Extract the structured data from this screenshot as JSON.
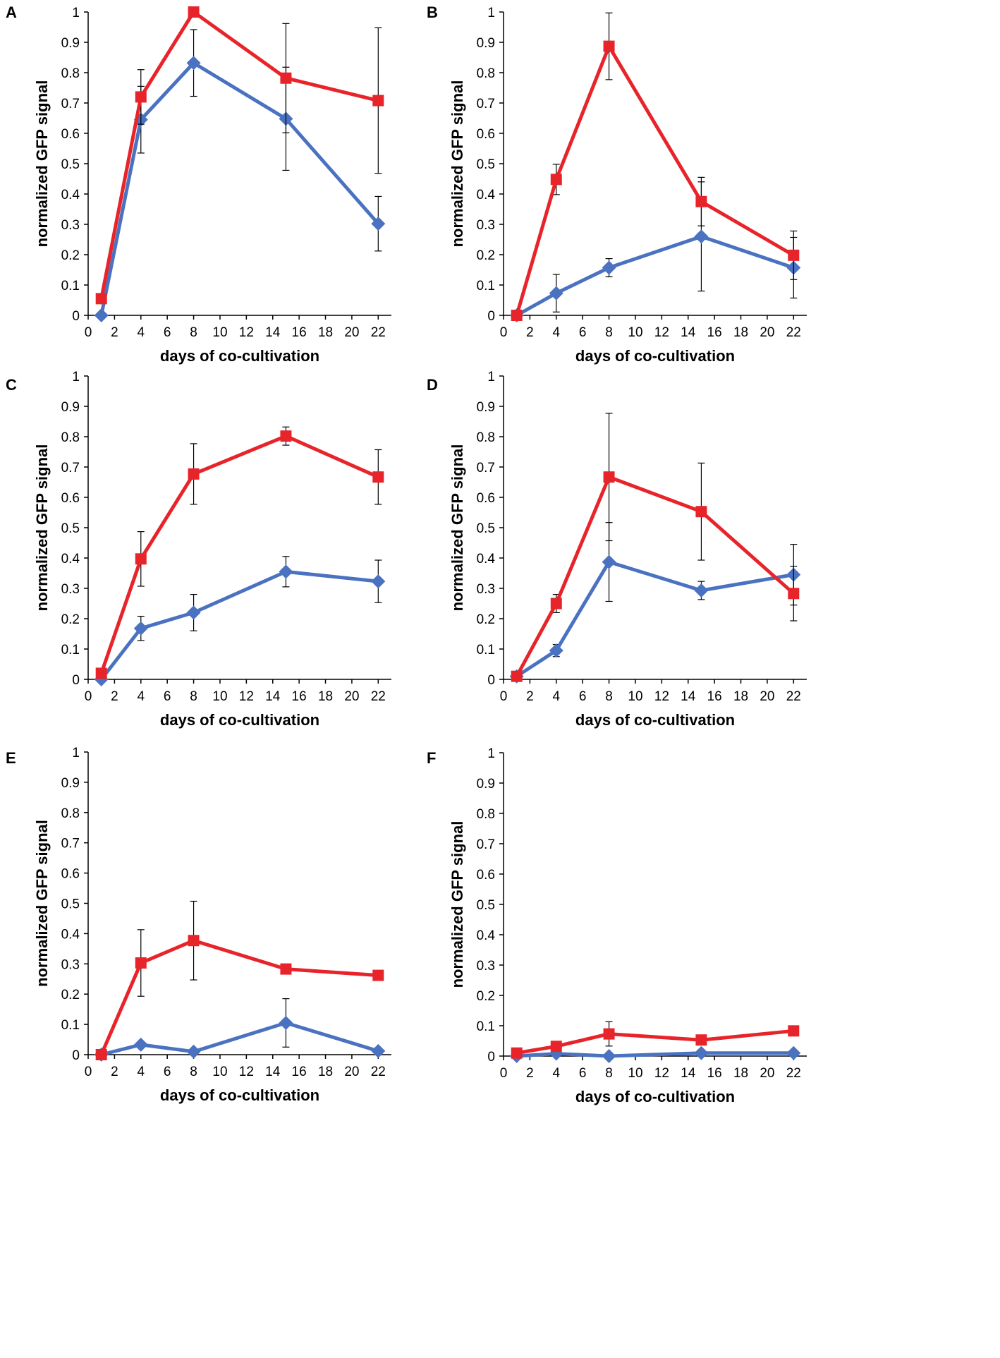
{
  "series_styles": [
    {
      "name": "blue",
      "color": "#4a72c0",
      "marker": "diamond"
    },
    {
      "name": "red",
      "color": "#e8242b",
      "marker": "square"
    }
  ],
  "chart_data": [
    {
      "type": "line",
      "panel": "A",
      "xlabel": "days of co-cultivation",
      "ylabel": "normalized GFP signal",
      "xlim": [
        0,
        23
      ],
      "ylim": [
        0,
        1
      ],
      "xticks": [
        "0",
        "2",
        "4",
        "6",
        "8",
        "10",
        "12",
        "14",
        "16",
        "18",
        "20",
        "22"
      ],
      "yticks": [
        "0",
        "0.1",
        "0.2",
        "0.3",
        "0.4",
        "0.5",
        "0.6",
        "0.7",
        "0.8",
        "0.9",
        "1"
      ],
      "x": [
        1,
        4,
        8,
        15,
        22
      ],
      "series": [
        {
          "name": "blue",
          "values": [
            0.0,
            0.645,
            0.832,
            0.648,
            0.302
          ],
          "errors": [
            0.0,
            0.11,
            0.11,
            0.17,
            0.09
          ]
        },
        {
          "name": "red",
          "values": [
            0.055,
            0.72,
            1.0,
            0.782,
            0.708
          ],
          "errors": [
            0.0,
            0.09,
            0.0,
            0.18,
            0.24
          ]
        }
      ]
    },
    {
      "type": "line",
      "panel": "B",
      "xlabel": "days of co-cultivation",
      "ylabel": "normalized GFP signal",
      "xlim": [
        0,
        23
      ],
      "ylim": [
        0,
        1
      ],
      "xticks": [
        "0",
        "2",
        "4",
        "6",
        "8",
        "10",
        "12",
        "14",
        "16",
        "18",
        "20",
        "22"
      ],
      "yticks": [
        "0",
        "0.1",
        "0.2",
        "0.3",
        "0.4",
        "0.5",
        "0.6",
        "0.7",
        "0.8",
        "0.9",
        "1"
      ],
      "x": [
        1,
        4,
        8,
        15,
        22
      ],
      "series": [
        {
          "name": "blue",
          "values": [
            0.0,
            0.073,
            0.157,
            0.26,
            0.157
          ],
          "errors": [
            0.0,
            0.062,
            0.03,
            0.18,
            0.1
          ]
        },
        {
          "name": "red",
          "values": [
            0.0,
            0.448,
            0.887,
            0.375,
            0.198
          ],
          "errors": [
            0.0,
            0.05,
            0.11,
            0.08,
            0.08
          ]
        }
      ]
    },
    {
      "type": "line",
      "panel": "C",
      "xlabel": "days of co-cultivation",
      "ylabel": "normalized GFP signal",
      "xlim": [
        0,
        23
      ],
      "ylim": [
        0,
        1
      ],
      "xticks": [
        "0",
        "2",
        "4",
        "6",
        "8",
        "10",
        "12",
        "14",
        "16",
        "18",
        "20",
        "22"
      ],
      "yticks": [
        "0",
        "0.1",
        "0.2",
        "0.3",
        "0.4",
        "0.5",
        "0.6",
        "0.7",
        "0.8",
        "0.9",
        "1"
      ],
      "x": [
        1,
        4,
        8,
        15,
        22
      ],
      "series": [
        {
          "name": "blue",
          "values": [
            0.0,
            0.168,
            0.22,
            0.355,
            0.323
          ],
          "errors": [
            0.0,
            0.04,
            0.06,
            0.05,
            0.07
          ]
        },
        {
          "name": "red",
          "values": [
            0.02,
            0.397,
            0.677,
            0.802,
            0.667
          ],
          "errors": [
            0.0,
            0.09,
            0.1,
            0.03,
            0.09
          ]
        }
      ]
    },
    {
      "type": "line",
      "panel": "D",
      "xlabel": "days of co-cultivation",
      "ylabel": "normalized GFP signal",
      "xlim": [
        0,
        23
      ],
      "ylim": [
        0,
        1
      ],
      "xticks": [
        "0",
        "2",
        "4",
        "6",
        "8",
        "10",
        "12",
        "14",
        "16",
        "18",
        "20",
        "22"
      ],
      "yticks": [
        "0",
        "0.1",
        "0.2",
        "0.3",
        "0.4",
        "0.5",
        "0.6",
        "0.7",
        "0.8",
        "0.9",
        "1"
      ],
      "x": [
        1,
        4,
        8,
        15,
        22
      ],
      "series": [
        {
          "name": "blue",
          "values": [
            0.01,
            0.095,
            0.387,
            0.293,
            0.345
          ],
          "errors": [
            0.0,
            0.02,
            0.13,
            0.03,
            0.1
          ]
        },
        {
          "name": "red",
          "values": [
            0.01,
            0.25,
            0.667,
            0.553,
            0.283
          ],
          "errors": [
            0.0,
            0.03,
            0.21,
            0.16,
            0.09
          ]
        }
      ]
    },
    {
      "type": "line",
      "panel": "E",
      "xlabel": "days of co-cultivation",
      "ylabel": "normalized GFP signal",
      "xlim": [
        0,
        23
      ],
      "ylim": [
        0,
        1
      ],
      "xticks": [
        "0",
        "2",
        "4",
        "6",
        "8",
        "10",
        "12",
        "14",
        "16",
        "18",
        "20",
        "22"
      ],
      "yticks": [
        "0",
        "0.1",
        "0.2",
        "0.3",
        "0.4",
        "0.5",
        "0.6",
        "0.7",
        "0.8",
        "0.9",
        "1"
      ],
      "x": [
        1,
        4,
        8,
        15,
        22
      ],
      "series": [
        {
          "name": "blue",
          "values": [
            0.0,
            0.033,
            0.01,
            0.105,
            0.012
          ],
          "errors": [
            0.0,
            0.0,
            0.0,
            0.08,
            0.0
          ]
        },
        {
          "name": "red",
          "values": [
            0.0,
            0.303,
            0.377,
            0.283,
            0.262
          ],
          "errors": [
            0.0,
            0.11,
            0.13,
            0.015,
            0.015
          ]
        }
      ]
    },
    {
      "type": "line",
      "panel": "F",
      "xlabel": "days of co-cultivation",
      "ylabel": "normalized GFP signal",
      "xlim": [
        0,
        23
      ],
      "ylim": [
        0,
        1
      ],
      "xticks": [
        "0",
        "2",
        "4",
        "6",
        "8",
        "10",
        "12",
        "14",
        "16",
        "18",
        "20",
        "22"
      ],
      "yticks": [
        "0",
        "0.1",
        "0.2",
        "0.3",
        "0.4",
        "0.5",
        "0.6",
        "0.7",
        "0.8",
        "0.9",
        "1"
      ],
      "x": [
        1,
        4,
        8,
        15,
        22
      ],
      "series": [
        {
          "name": "blue",
          "values": [
            0.0,
            0.008,
            0.0,
            0.01,
            0.01
          ],
          "errors": [
            0.0,
            0.0,
            0.0,
            0.0,
            0.0
          ]
        },
        {
          "name": "red",
          "values": [
            0.01,
            0.032,
            0.073,
            0.053,
            0.083
          ],
          "errors": [
            0.0,
            0.0,
            0.04,
            0.0,
            0.015
          ]
        }
      ]
    }
  ]
}
